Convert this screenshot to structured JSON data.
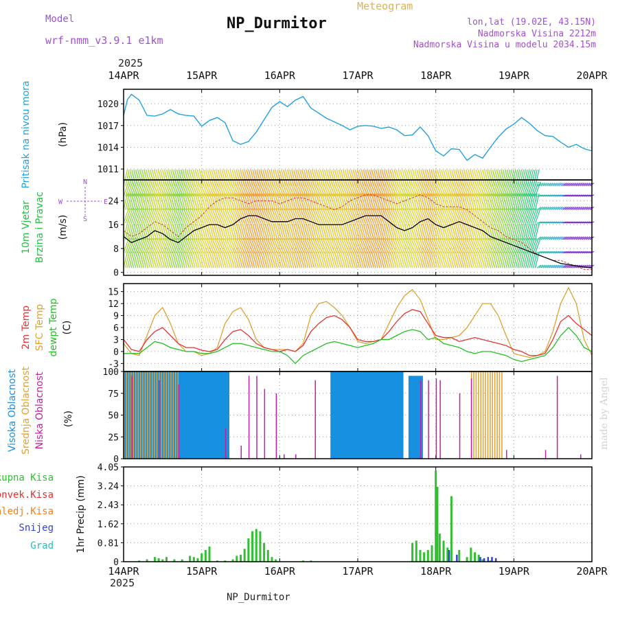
{
  "header": {
    "model_label": "Model",
    "model_name": "wrf-nmm_v3.9.1 e1km",
    "title": "NP_Durmitor",
    "subtitle": "Meteogram",
    "location": "lon,lat (19.02E, 43.15N)",
    "altitude": "Nadmorska Visina 2212m",
    "model_altitude": "Nadmorska Visina u modelu 2034.15m",
    "year_top": "2025",
    "year_bottom": "2025",
    "footer": "NP_Durmitor",
    "credit": "made by Angel"
  },
  "colors": {
    "pressure": "#20a0e0",
    "wind_speed": "#000000",
    "wind_gust": "#e03030",
    "temp2m": "#e83030",
    "sfc_temp": "#e0a030",
    "dewpt": "#20c020",
    "cloud_high": "#1890e0",
    "cloud_mid": "#e0a030",
    "cloud_low": "#c020a0",
    "precip_total": "#30c030",
    "precip_conv": "#e03030",
    "precip_frz": "#f08020",
    "precip_snow": "#3040e0",
    "precip_hail": "#20c0c0",
    "violet_text": "#a050d0"
  },
  "chart_data": [
    {
      "type": "line",
      "panel": "pressure",
      "xticks": [
        "14APR",
        "15APR",
        "16APR",
        "17APR",
        "18APR",
        "19APR",
        "20APR"
      ],
      "ylabel_lines": [
        "Pritisak na nivou mora",
        "(hPa)"
      ],
      "yticks": [
        1011,
        1014,
        1017,
        1020
      ],
      "ylim": [
        1009.5,
        1022.0
      ],
      "x_days": [
        0,
        0.05,
        0.1,
        0.2,
        0.3,
        0.4,
        0.5,
        0.6,
        0.7,
        0.8,
        0.9,
        1.0,
        1.1,
        1.2,
        1.3,
        1.4,
        1.5,
        1.6,
        1.7,
        1.8,
        1.9,
        2.0,
        2.1,
        2.2,
        2.3,
        2.4,
        2.5,
        2.6,
        2.7,
        2.8,
        2.9,
        3.0,
        3.1,
        3.2,
        3.3,
        3.4,
        3.5,
        3.6,
        3.7,
        3.8,
        3.9,
        4.0,
        4.1,
        4.2,
        4.3,
        4.4,
        4.5,
        4.6,
        4.7,
        4.8,
        4.9,
        5.0,
        5.1,
        5.2,
        5.3,
        5.4,
        5.5,
        5.6,
        5.7,
        5.8,
        5.9,
        6.0
      ],
      "series": [
        {
          "values": [
            1018.4,
            1020.6,
            1021.3,
            1020.5,
            1018.4,
            1018.3,
            1018.6,
            1019.2,
            1018.6,
            1018.4,
            1018.3,
            1016.9,
            1017.7,
            1018.1,
            1017.4,
            1014.9,
            1014.4,
            1014.8,
            1016.1,
            1017.8,
            1019.5,
            1020.3,
            1019.6,
            1020.5,
            1021.0,
            1019.4,
            1018.7,
            1018.0,
            1017.5,
            1017.0,
            1016.4,
            1016.9,
            1017.0,
            1016.9,
            1016.6,
            1016.8,
            1016.4,
            1015.6,
            1015.7,
            1016.8,
            1015.6,
            1013.5,
            1012.8,
            1013.8,
            1013.7,
            1012.2,
            1013.0,
            1012.5,
            1014.0,
            1015.4,
            1016.5,
            1017.2,
            1018.1,
            1017.3,
            1016.3,
            1015.6,
            1015.5,
            1014.7,
            1014.0,
            1014.4,
            1013.8,
            1013.5
          ]
        }
      ]
    },
    {
      "type": "line",
      "panel": "wind",
      "ylabel_lines": [
        "10m Vjetar",
        "Brzina i Pravac",
        "(m/s)"
      ],
      "compass": {
        "n": "N",
        "s": "S",
        "w": "W",
        "e": "E"
      },
      "yticks": [
        0,
        8,
        16,
        24
      ],
      "ylim": [
        -1,
        31
      ],
      "x_days": [
        0,
        0.1,
        0.2,
        0.3,
        0.4,
        0.5,
        0.6,
        0.7,
        0.8,
        0.9,
        1.0,
        1.1,
        1.2,
        1.3,
        1.4,
        1.5,
        1.6,
        1.7,
        1.8,
        1.9,
        2.0,
        2.1,
        2.2,
        2.3,
        2.4,
        2.5,
        2.6,
        2.7,
        2.8,
        2.9,
        3.0,
        3.1,
        3.2,
        3.3,
        3.4,
        3.5,
        3.6,
        3.7,
        3.8,
        3.9,
        4.0,
        4.1,
        4.2,
        4.3,
        4.4,
        4.5,
        4.6,
        4.7,
        4.8,
        4.9,
        5.0,
        5.1,
        5.2,
        5.3,
        5.4,
        5.5,
        5.6,
        5.7,
        5.8,
        5.9,
        6.0
      ],
      "series": [
        {
          "values": [
            12,
            10,
            11,
            12,
            14,
            13,
            11,
            10,
            12,
            14,
            15,
            16,
            16,
            15,
            16,
            18,
            19,
            19,
            18,
            17,
            17,
            17,
            18,
            18,
            17,
            16,
            16,
            16,
            16,
            17,
            18,
            19,
            19,
            19,
            17,
            15,
            14,
            15,
            17,
            18,
            16,
            15,
            16,
            17,
            16,
            15,
            14,
            12,
            11,
            10,
            9,
            8,
            7,
            6,
            5,
            4,
            3,
            2.6,
            2.2,
            1.8,
            1.5
          ]
        },
        {
          "values": [
            14,
            12,
            13,
            15,
            17,
            16,
            14,
            12,
            15,
            17,
            19,
            22,
            24,
            25,
            25,
            24,
            23,
            24,
            24,
            24,
            23,
            24,
            25,
            25,
            24,
            23,
            22,
            21,
            22,
            24,
            25,
            26,
            26,
            25,
            24,
            23,
            24,
            25,
            26,
            25,
            23,
            22,
            22,
            22,
            21,
            19,
            17,
            15,
            14,
            12,
            11,
            10,
            8,
            6,
            5,
            4,
            4,
            3,
            2,
            1,
            1
          ]
        }
      ]
    },
    {
      "type": "line",
      "panel": "temperature",
      "ylabel_lines": [
        "2m Temp",
        "SFC Temp",
        "dewpt Temp",
        "(C)"
      ],
      "yticks": [
        -3,
        0,
        3,
        6,
        9,
        12,
        15
      ],
      "ylim": [
        -5,
        17
      ],
      "x_days": [
        0,
        0.1,
        0.2,
        0.3,
        0.4,
        0.5,
        0.6,
        0.7,
        0.8,
        0.9,
        1.0,
        1.1,
        1.2,
        1.3,
        1.4,
        1.5,
        1.6,
        1.7,
        1.8,
        1.9,
        2.0,
        2.1,
        2.2,
        2.3,
        2.4,
        2.5,
        2.6,
        2.7,
        2.8,
        2.9,
        3.0,
        3.1,
        3.2,
        3.3,
        3.4,
        3.5,
        3.6,
        3.7,
        3.8,
        3.9,
        4.0,
        4.1,
        4.2,
        4.3,
        4.4,
        4.5,
        4.6,
        4.7,
        4.8,
        4.9,
        5.0,
        5.1,
        5.2,
        5.3,
        5.4,
        5.5,
        5.6,
        5.7,
        5.8,
        5.9,
        6.0
      ],
      "series": [
        {
          "name": "2m Temp",
          "values": [
            3,
            0.5,
            0,
            3,
            5,
            6,
            4,
            2,
            1,
            1,
            0.3,
            0,
            0.5,
            3,
            5,
            5.5,
            4,
            2,
            1,
            0.5,
            0,
            0.5,
            0,
            1.5,
            5,
            7,
            8.5,
            9,
            8,
            6,
            3,
            2.5,
            2.5,
            3,
            5,
            7.5,
            9.5,
            10.5,
            10,
            7,
            4,
            3.5,
            3.5,
            2.5,
            3,
            3.5,
            3,
            2.5,
            2,
            1.5,
            0.5,
            0,
            -1,
            -1,
            -0.5,
            3,
            7.5,
            9,
            7,
            5.5,
            4
          ]
        },
        {
          "name": "SFC Temp",
          "values": [
            2,
            -0.5,
            -1,
            4,
            9,
            11,
            7,
            2,
            0,
            0,
            -1,
            -0.5,
            1,
            7,
            10,
            11,
            8,
            3,
            1,
            0.5,
            0.5,
            0.5,
            0,
            2,
            9,
            12,
            12.5,
            11,
            9,
            6,
            2.5,
            2,
            2.5,
            3,
            7,
            11,
            14,
            15.5,
            13,
            8,
            3,
            3,
            3.5,
            4,
            6,
            9,
            12,
            12,
            9,
            4,
            -0.5,
            -1,
            -1.5,
            -1,
            0,
            5,
            12,
            16,
            12,
            3,
            -1
          ]
        },
        {
          "name": "dewpt Temp",
          "values": [
            -0.5,
            -0.5,
            -0.5,
            1,
            2.5,
            2,
            1,
            0.5,
            0,
            0,
            -0.5,
            -0.5,
            0,
            1,
            2,
            2,
            1.5,
            1,
            0.5,
            0,
            0,
            -1,
            -3,
            -1,
            0,
            1,
            2,
            2.5,
            2,
            1.5,
            1,
            1.5,
            2,
            3,
            3,
            4,
            5,
            5.5,
            5,
            3,
            3.5,
            2,
            1.5,
            1,
            0,
            -0.5,
            0,
            0,
            -0.5,
            -1,
            -2,
            -2.5,
            -2,
            -1.5,
            -1,
            1,
            4,
            6,
            4,
            1,
            0
          ]
        }
      ]
    },
    {
      "type": "bar",
      "panel": "cloud",
      "ylabel_lines": [
        "Visoka Oblacnost",
        "Srednja Oblacnost",
        "Niska Oblacnost",
        "(%)"
      ],
      "yticks": [
        0,
        25,
        50,
        75,
        100
      ],
      "ylim": [
        0,
        100
      ],
      "series": [
        {
          "name": "Visoka Oblacnost",
          "ranges": [
            [
              0.0,
              1.35,
              100
            ],
            [
              2.65,
              3.55,
              100
            ],
            [
              3.65,
              3.8,
              95
            ]
          ]
        },
        {
          "name": "Srednja Oblacnost",
          "ranges": [
            [
              0.0,
              0.7,
              100
            ],
            [
              4.45,
              4.85,
              100
            ]
          ]
        },
        {
          "name": "Niska Oblacnost",
          "spikes": [
            [
              0.1,
              95
            ],
            [
              0.45,
              90
            ],
            [
              0.7,
              85
            ],
            [
              1.3,
              35
            ],
            [
              1.5,
              15
            ],
            [
              1.6,
              95
            ],
            [
              1.7,
              95
            ],
            [
              1.8,
              80
            ],
            [
              1.95,
              75
            ],
            [
              2.05,
              5
            ],
            [
              2.2,
              5
            ],
            [
              2.45,
              90
            ],
            [
              3.8,
              90
            ],
            [
              3.9,
              90
            ],
            [
              4.0,
              92
            ],
            [
              4.05,
              90
            ],
            [
              4.3,
              75
            ],
            [
              4.45,
              92
            ],
            [
              4.9,
              10
            ],
            [
              5.4,
              10
            ],
            [
              5.55,
              95
            ],
            [
              5.85,
              5
            ]
          ]
        }
      ]
    },
    {
      "type": "bar",
      "panel": "precip",
      "ylabel_lines": [
        "1hr Precip (mm)"
      ],
      "legend": [
        "Ukupna Kisa",
        "Konvek.Kisa",
        "Zaledj.Kisa",
        "Snijeg",
        "Grad"
      ],
      "yticks": [
        0,
        0.81,
        1.62,
        2.43,
        3.24,
        4.05
      ],
      "ylim": [
        0,
        4.05
      ],
      "series": [
        {
          "name": "Ukupna Kisa",
          "points": [
            [
              0.2,
              0.05
            ],
            [
              0.3,
              0.1
            ],
            [
              0.4,
              0.2
            ],
            [
              0.45,
              0.15
            ],
            [
              0.5,
              0.1
            ],
            [
              0.55,
              0.2
            ],
            [
              0.65,
              0.1
            ],
            [
              0.75,
              0.1
            ],
            [
              0.85,
              0.25
            ],
            [
              0.9,
              0.2
            ],
            [
              0.95,
              0.15
            ],
            [
              1.0,
              0.35
            ],
            [
              1.05,
              0.5
            ],
            [
              1.1,
              0.65
            ],
            [
              1.2,
              0.05
            ],
            [
              1.3,
              0.05
            ],
            [
              1.4,
              0.1
            ],
            [
              1.45,
              0.25
            ],
            [
              1.5,
              0.3
            ],
            [
              1.55,
              0.55
            ],
            [
              1.6,
              1.0
            ],
            [
              1.65,
              1.3
            ],
            [
              1.7,
              1.4
            ],
            [
              1.75,
              1.3
            ],
            [
              1.8,
              0.8
            ],
            [
              1.85,
              0.5
            ],
            [
              1.9,
              0.2
            ],
            [
              1.95,
              0.1
            ],
            [
              2.3,
              0.05
            ],
            [
              2.4,
              0.05
            ],
            [
              3.7,
              0.8
            ],
            [
              3.75,
              0.9
            ],
            [
              3.8,
              0.5
            ],
            [
              3.85,
              0.4
            ],
            [
              3.9,
              0.5
            ],
            [
              3.95,
              0.7
            ],
            [
              4.0,
              3.9
            ],
            [
              4.02,
              3.2
            ],
            [
              4.05,
              1.2
            ],
            [
              4.1,
              0.9
            ],
            [
              4.15,
              0.6
            ],
            [
              4.2,
              2.8
            ],
            [
              4.3,
              0.5
            ],
            [
              4.4,
              0.2
            ],
            [
              4.45,
              0.6
            ],
            [
              4.5,
              0.4
            ],
            [
              4.55,
              0.3
            ],
            [
              4.6,
              0.1
            ],
            [
              4.7,
              0.05
            ]
          ]
        },
        {
          "name": "Snijeg",
          "points": [
            [
              4.15,
              0.5
            ],
            [
              4.25,
              0.3
            ],
            [
              4.55,
              0.2
            ],
            [
              4.6,
              0.15
            ],
            [
              4.65,
              0.2
            ],
            [
              4.7,
              0.2
            ],
            [
              4.75,
              0.15
            ]
          ]
        }
      ]
    }
  ]
}
